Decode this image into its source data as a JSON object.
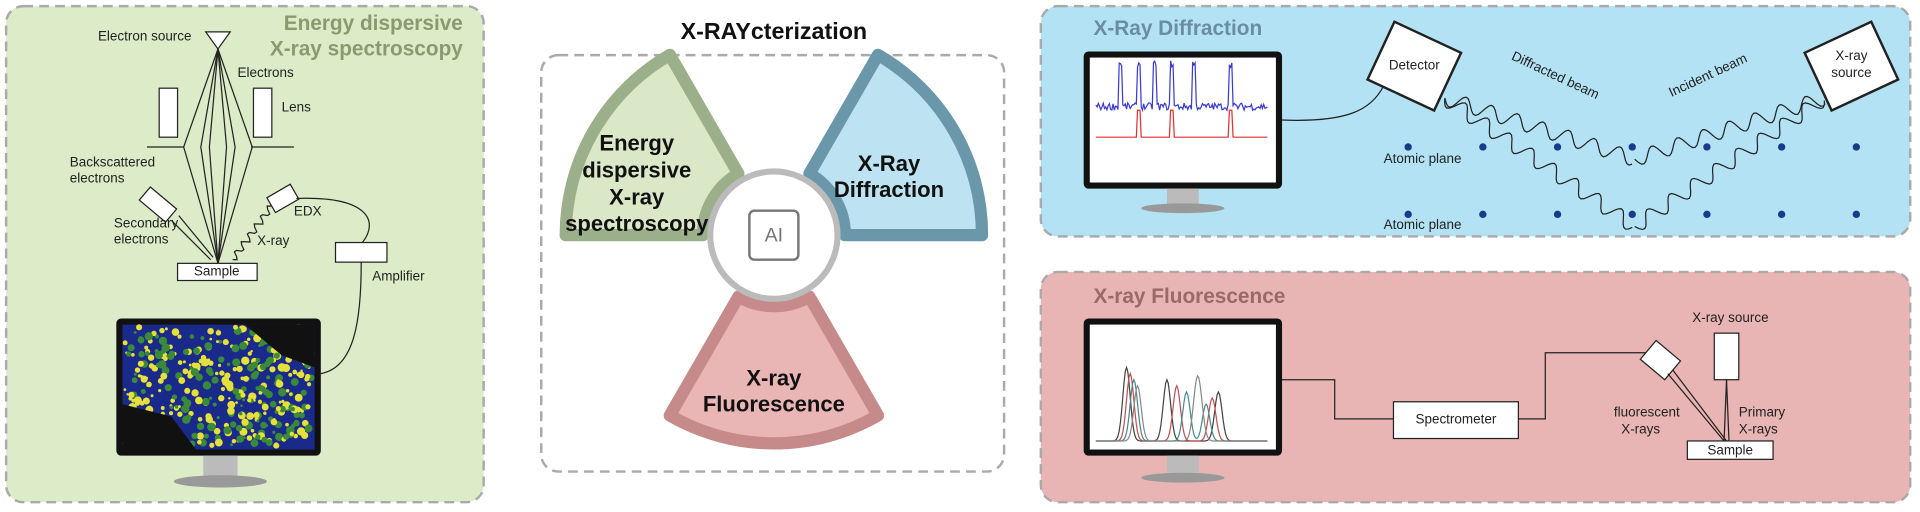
{
  "title": "X-RAYcterization",
  "edx": {
    "title": [
      "Energy dispersive",
      "X-ray spectroscopy"
    ],
    "electron_source": "Electron source",
    "electrons": "Electrons",
    "lens": "Lens",
    "backscattered": [
      "Backscattered",
      "electrons"
    ],
    "secondary": [
      "Secondary",
      "electrons"
    ],
    "edx": "EDX",
    "xray": "X-ray",
    "sample": "Sample",
    "amplifier": "Amplifier"
  },
  "center": {
    "edx": [
      "Energy",
      "dispersive",
      "X-ray",
      "spectroscopy"
    ],
    "xrd": [
      "X-Ray",
      "Diffraction"
    ],
    "xrf": [
      "X-ray",
      "Fluorescence"
    ],
    "ai": "AI"
  },
  "xrd": {
    "title": "X-Ray Diffraction",
    "detector": "Detector",
    "diffracted": "Diffracted beam",
    "incident": "Incident beam",
    "source": [
      "X-ray",
      "source"
    ],
    "planes": [
      "Atomic plane",
      "Atomic plane"
    ]
  },
  "xrf": {
    "title": "X-ray Fluorescence",
    "source": "X-ray source",
    "primary": [
      "Primary",
      "X-rays"
    ],
    "fluorescent": [
      "fluorescent",
      "X-rays"
    ],
    "spectrometer": "Spectrometer",
    "sample": "Sample"
  }
}
